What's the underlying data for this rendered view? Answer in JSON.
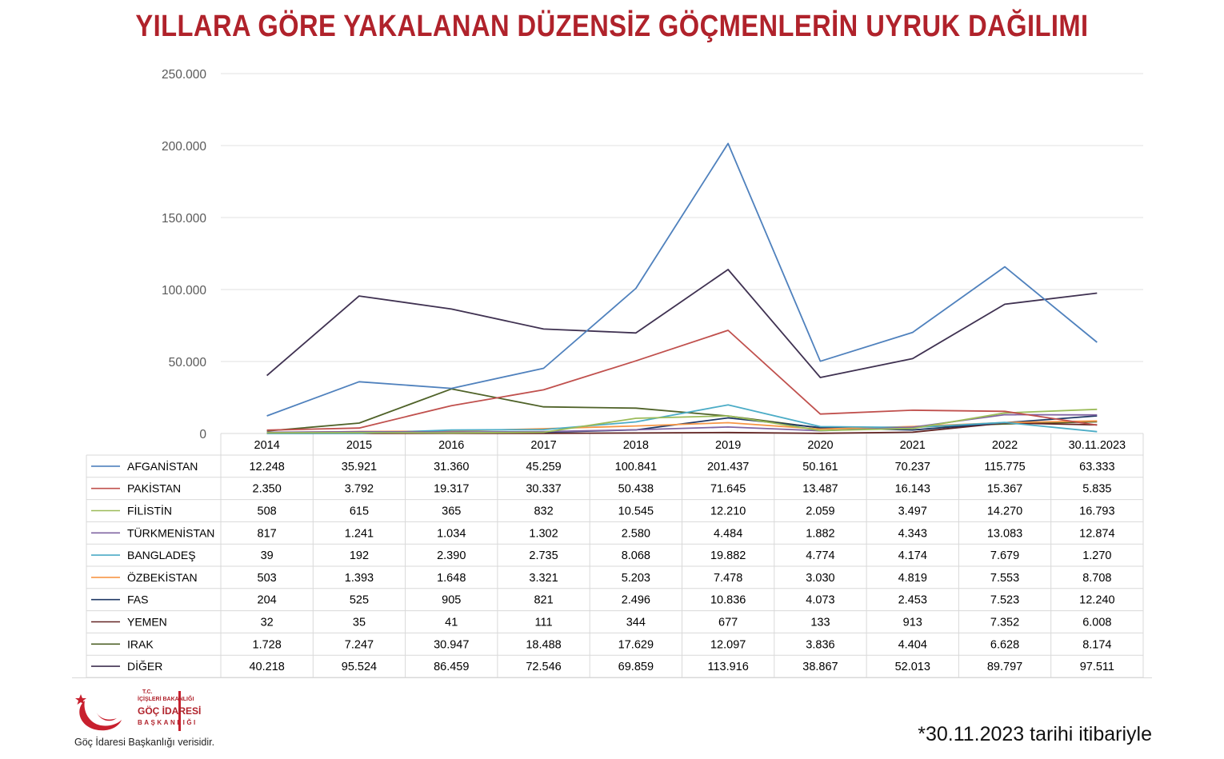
{
  "title": "YILLARA GÖRE YAKALANAN DÜZENSİZ GÖÇMENLERİN UYRUK DAĞILIMI",
  "footnote": "*30.11.2023 tarihi itibariyle",
  "source": "Göç İdaresi Başkanlığı verisidir.",
  "logo": {
    "line1": "T.C.",
    "line2": "İÇİŞLERİ BAKANLIĞI",
    "line3": "GÖÇ İDARESİ",
    "line4": "BAŞKANLIĞI"
  },
  "chart_data": {
    "type": "line",
    "title": "YILLARA GÖRE YAKALANAN DÜZENSİZ GÖÇMENLERİN UYRUK DAĞILIMI",
    "ylim": [
      0,
      250000
    ],
    "y_ticks": [
      0,
      50000,
      100000,
      150000,
      200000,
      250000
    ],
    "y_tick_labels": [
      "0",
      "50.000",
      "100.000",
      "150.000",
      "200.000",
      "250.000"
    ],
    "gridlines": true,
    "legend": "data-table-below",
    "categories": [
      "2014",
      "2015",
      "2016",
      "2017",
      "2018",
      "2019",
      "2020",
      "2021",
      "2022",
      "30.11.2023"
    ],
    "series": [
      {
        "name": "AFGANİSTAN",
        "color": "#4f81bd",
        "values": [
          12248,
          35921,
          31360,
          45259,
          100841,
          201437,
          50161,
          70237,
          115775,
          63333
        ],
        "labels": [
          "12.248",
          "35.921",
          "31.360",
          "45.259",
          "100.841",
          "201.437",
          "50.161",
          "70.237",
          "115.775",
          "63.333"
        ]
      },
      {
        "name": "PAKİSTAN",
        "color": "#c0504d",
        "values": [
          2350,
          3792,
          19317,
          30337,
          50438,
          71645,
          13487,
          16143,
          15367,
          5835
        ],
        "labels": [
          "2.350",
          "3.792",
          "19.317",
          "30.337",
          "50.438",
          "71.645",
          "13.487",
          "16.143",
          "15.367",
          "5.835"
        ]
      },
      {
        "name": "FİLİSTİN",
        "color": "#9bbb59",
        "values": [
          508,
          615,
          365,
          832,
          10545,
          12210,
          2059,
          3497,
          14270,
          16793
        ],
        "labels": [
          "508",
          "615",
          "365",
          "832",
          "10.545",
          "12.210",
          "2.059",
          "3.497",
          "14.270",
          "16.793"
        ]
      },
      {
        "name": "TÜRKMENİSTAN",
        "color": "#8064a2",
        "values": [
          817,
          1241,
          1034,
          1302,
          2580,
          4484,
          1882,
          4343,
          13083,
          12874
        ],
        "labels": [
          "817",
          "1.241",
          "1.034",
          "1.302",
          "2.580",
          "4.484",
          "1.882",
          "4.343",
          "13.083",
          "12.874"
        ]
      },
      {
        "name": "BANGLADEŞ",
        "color": "#4bacc6",
        "values": [
          39,
          192,
          2390,
          2735,
          8068,
          19882,
          4774,
          4174,
          7679,
          1270
        ],
        "labels": [
          "39",
          "192",
          "2.390",
          "2.735",
          "8.068",
          "19.882",
          "4.774",
          "4.174",
          "7.679",
          "1.270"
        ]
      },
      {
        "name": "ÖZBEKİSTAN",
        "color": "#f79646",
        "values": [
          503,
          1393,
          1648,
          3321,
          5203,
          7478,
          3030,
          4819,
          7553,
          8708
        ],
        "labels": [
          "503",
          "1.393",
          "1.648",
          "3.321",
          "5.203",
          "7.478",
          "3.030",
          "4.819",
          "7.553",
          "8.708"
        ]
      },
      {
        "name": "FAS",
        "color": "#1f3864",
        "values": [
          204,
          525,
          905,
          821,
          2496,
          10836,
          4073,
          2453,
          7523,
          12240
        ],
        "labels": [
          "204",
          "525",
          "905",
          "821",
          "2.496",
          "10.836",
          "4.073",
          "2.453",
          "7.523",
          "12.240"
        ]
      },
      {
        "name": "YEMEN",
        "color": "#632523",
        "values": [
          32,
          35,
          41,
          111,
          344,
          677,
          133,
          913,
          7352,
          6008
        ],
        "labels": [
          "32",
          "35",
          "41",
          "111",
          "344",
          "677",
          "133",
          "913",
          "7.352",
          "6.008"
        ]
      },
      {
        "name": "IRAK",
        "color": "#4f6228",
        "values": [
          1728,
          7247,
          30947,
          18488,
          17629,
          12097,
          3836,
          4404,
          6628,
          8174
        ],
        "labels": [
          "1.728",
          "7.247",
          "30.947",
          "18.488",
          "17.629",
          "12.097",
          "3.836",
          "4.404",
          "6.628",
          "8.174"
        ]
      },
      {
        "name": "DİĞER",
        "color": "#3f3151",
        "values": [
          40218,
          95524,
          86459,
          72546,
          69859,
          113916,
          38867,
          52013,
          89797,
          97511
        ],
        "labels": [
          "40.218",
          "95.524",
          "86.459",
          "72.546",
          "69.859",
          "113.916",
          "38.867",
          "52.013",
          "89.797",
          "97.511"
        ]
      }
    ]
  }
}
